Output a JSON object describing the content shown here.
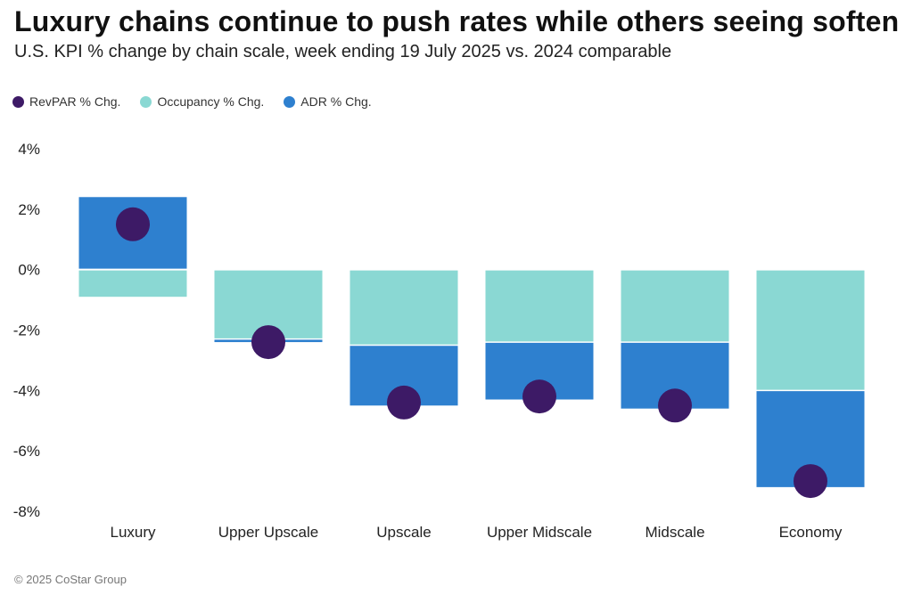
{
  "header": {
    "title": "Luxury chains continue to push rates while others seeing soften",
    "subtitle": "U.S. KPI % change by chain scale, week ending 19 July 2025 vs. 2024 comparable"
  },
  "legend": {
    "revpar": "RevPAR % Chg.",
    "occupancy": "Occupancy % Chg.",
    "adr": "ADR % Chg."
  },
  "colors": {
    "revpar": "#3d1a66",
    "occupancy": "#8ad8d3",
    "adr": "#2e80cf"
  },
  "chart_data": {
    "type": "bar",
    "title": "Luxury chains continue to push rates while others seeing soften",
    "subtitle": "U.S. KPI % change by chain scale, week ending 19 July 2025 vs. 2024 comparable",
    "categories": [
      "Luxury",
      "Upper Upscale",
      "Upscale",
      "Upper Midscale",
      "Midscale",
      "Economy"
    ],
    "series": [
      {
        "name": "Occupancy % Chg.",
        "values": [
          -0.9,
          -2.3,
          -2.5,
          -2.4,
          -2.4,
          -4.0
        ]
      },
      {
        "name": "ADR % Chg.",
        "values": [
          2.4,
          -0.1,
          -2.0,
          -1.9,
          -2.2,
          -3.2
        ]
      },
      {
        "name": "RevPAR % Chg.",
        "values": [
          1.5,
          -2.4,
          -4.4,
          -4.2,
          -4.5,
          -7.0
        ]
      }
    ],
    "ylim": [
      -8,
      4
    ],
    "yticks": [
      4,
      2,
      0,
      -2,
      -4,
      -6,
      -8
    ],
    "ytick_labels": [
      "4%",
      "2%",
      "0%",
      "-2%",
      "-4%",
      "-6%",
      "-8%"
    ],
    "xlabel": "",
    "ylabel": "",
    "legend_position": "top-left",
    "grid": false
  },
  "footer": {
    "copyright": "© 2025 CoStar Group"
  }
}
